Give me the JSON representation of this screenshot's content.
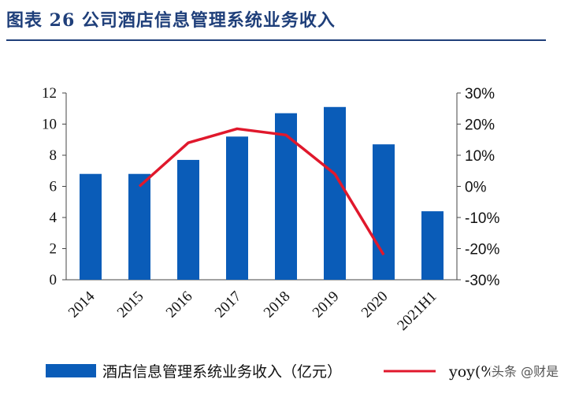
{
  "header": {
    "title": "图表 26 公司酒店信息管理系统业务收入"
  },
  "chart_data": {
    "type": "bar",
    "categories": [
      "2014",
      "2015",
      "2016",
      "2017",
      "2018",
      "2019",
      "2020",
      "2021H1"
    ],
    "series": [
      {
        "name": "酒店信息管理系统业务收入（亿元）",
        "type": "bar",
        "axis": "left",
        "values": [
          6.8,
          6.8,
          7.7,
          9.2,
          10.7,
          11.1,
          8.7,
          4.4
        ]
      },
      {
        "name": "yoy(%)",
        "type": "line",
        "axis": "right",
        "values": [
          null,
          0,
          14,
          18.5,
          16.5,
          4,
          -22,
          null
        ]
      }
    ],
    "y_left": {
      "min": 0,
      "max": 12,
      "ticks": [
        "0",
        "2",
        "4",
        "6",
        "8",
        "10",
        "12"
      ]
    },
    "y_right": {
      "min": -30,
      "max": 30,
      "ticks": [
        "-30%",
        "-20%",
        "-10%",
        "0%",
        "10%",
        "20%",
        "30%"
      ]
    },
    "grid": false,
    "legend": "bottom",
    "colors": {
      "bar": "#0a5cb8",
      "line": "#e0182c",
      "title": "#1f3f7a"
    }
  },
  "watermark": "头条 @财是"
}
